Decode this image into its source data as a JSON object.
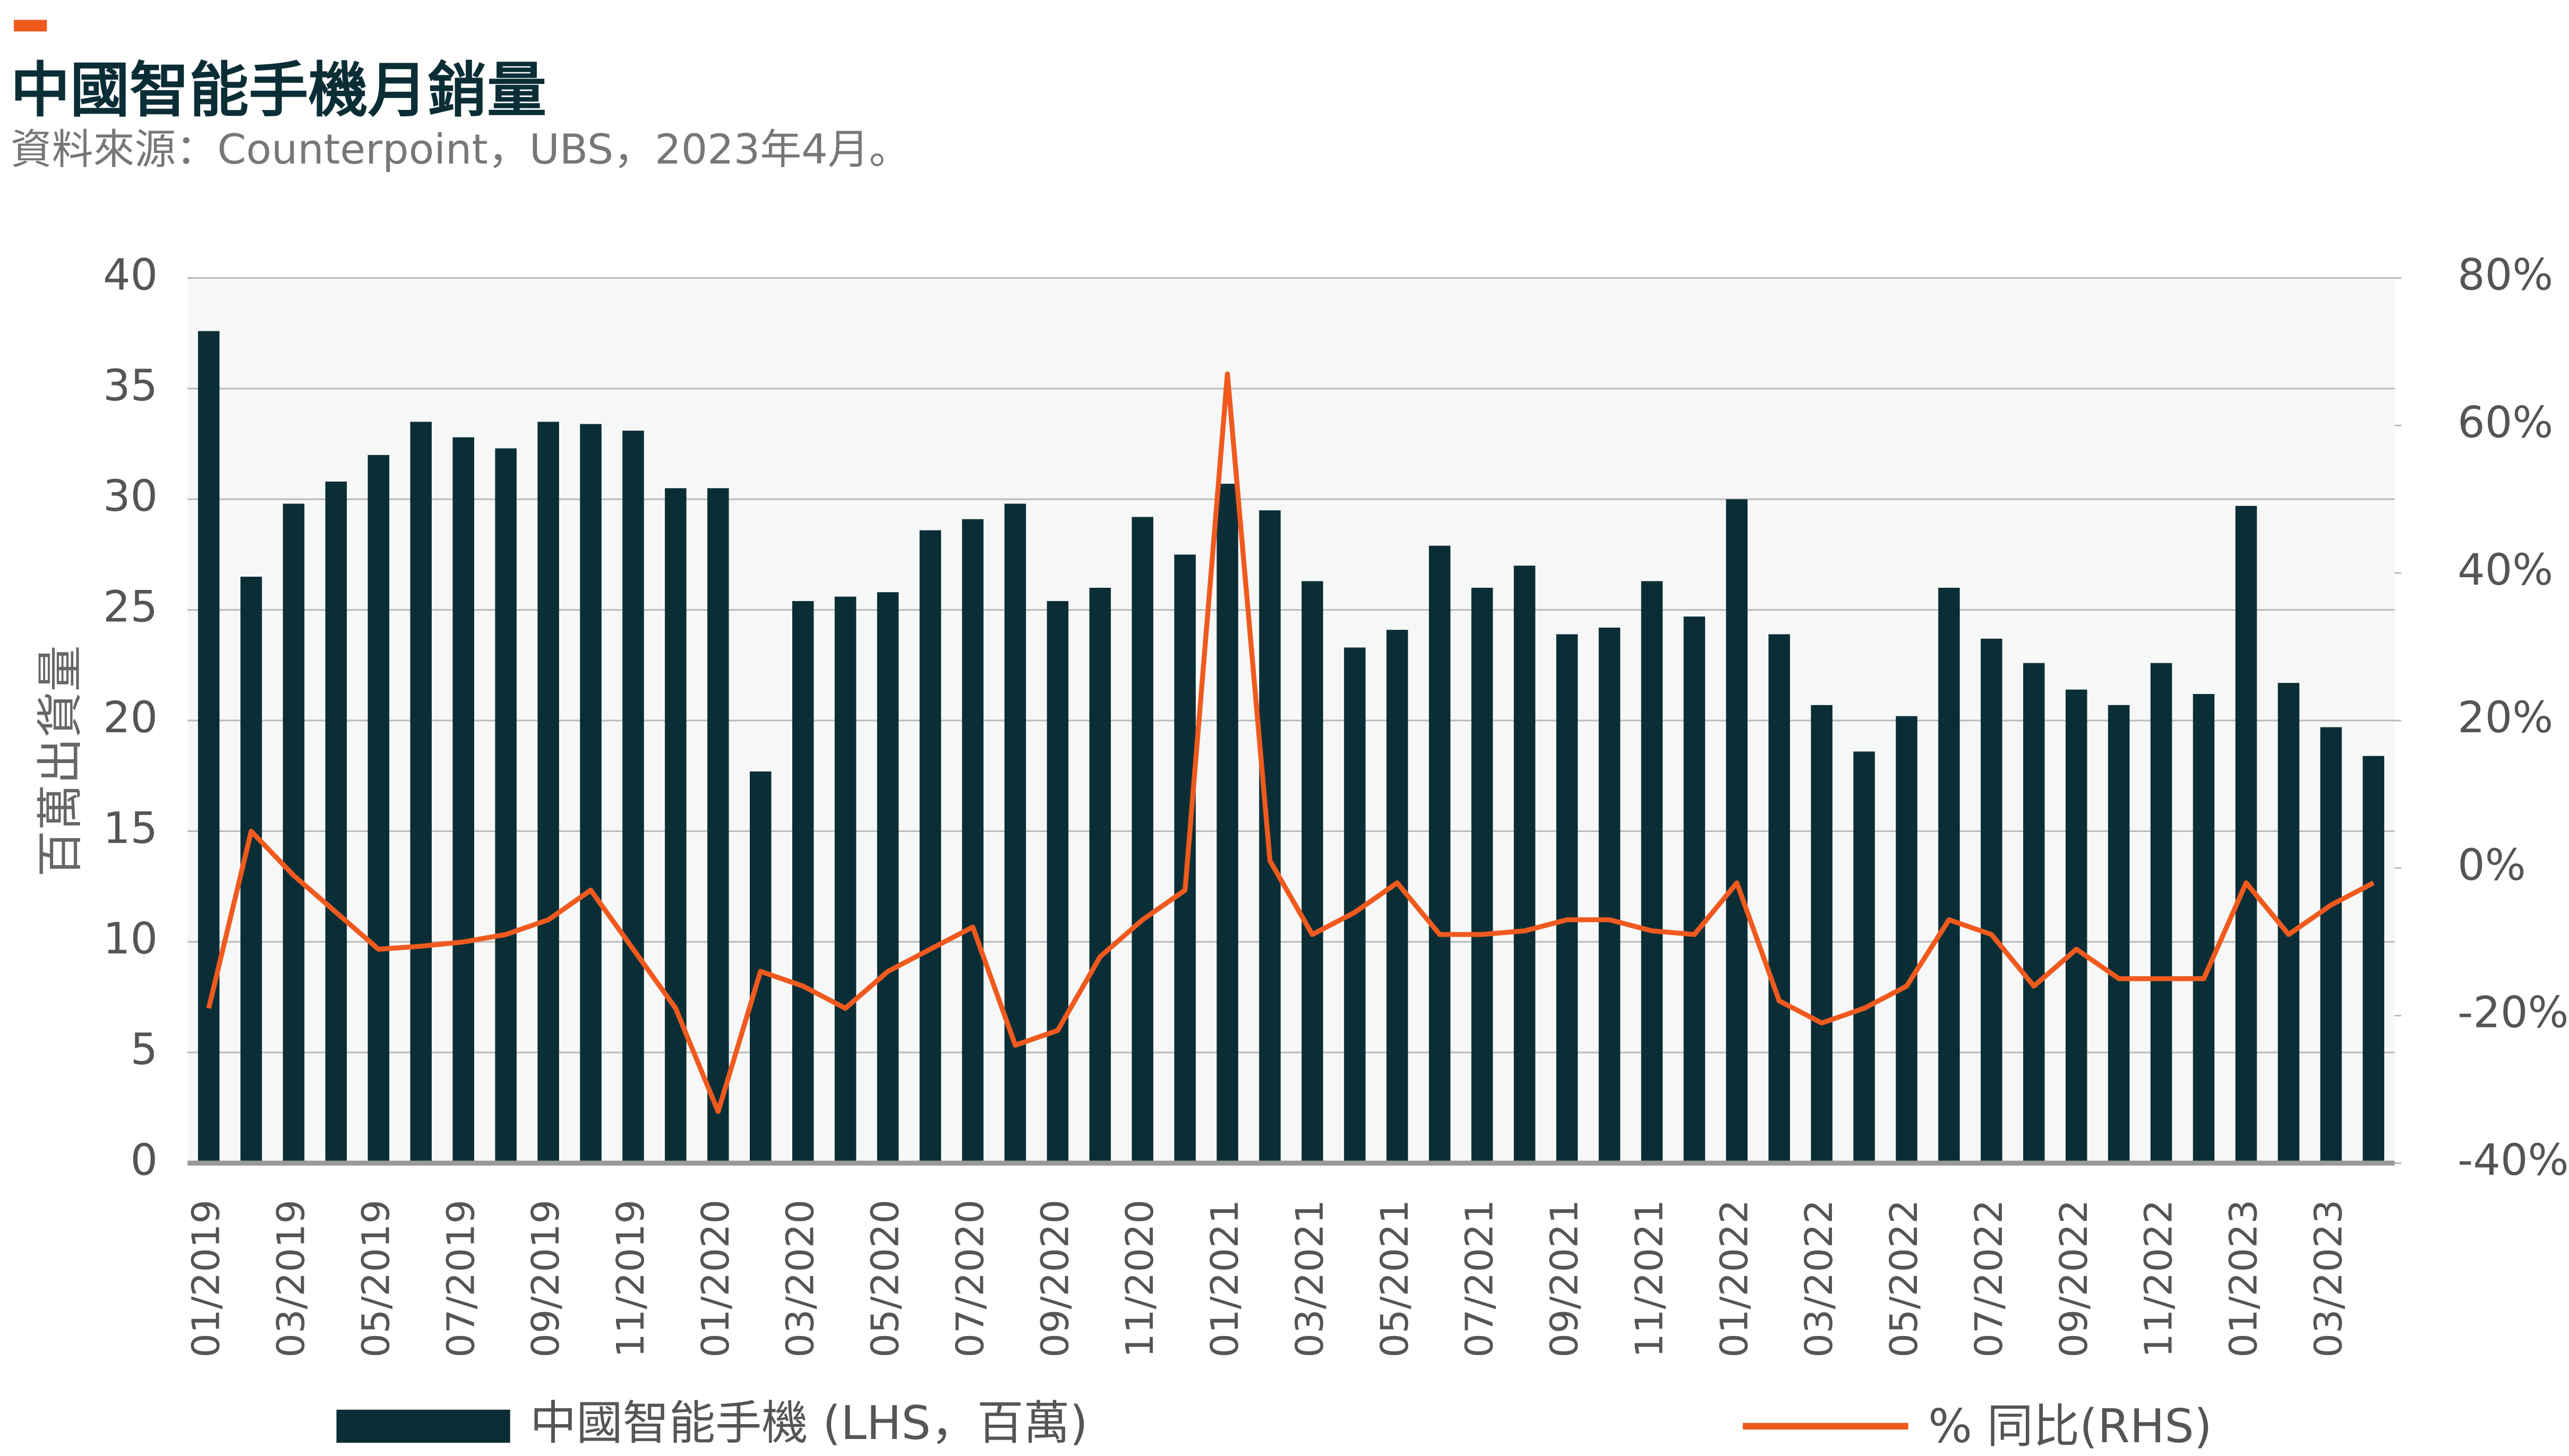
{
  "chart_data": {
    "type": "bar_line",
    "title": "中國智能手機月銷量",
    "subtitle": "資料來源：Counterpoint，UBS，2023年4月。",
    "ylabel": "百萬出貨量",
    "categories": [
      "01/2019",
      null,
      "03/2019",
      null,
      "05/2019",
      null,
      "07/2019",
      null,
      "09/2019",
      null,
      "11/2019",
      null,
      "01/2020",
      null,
      "03/2020",
      null,
      "05/2020",
      null,
      "07/2020",
      null,
      "09/2020",
      null,
      "11/2020",
      null,
      "01/2021",
      null,
      "03/2021",
      null,
      "05/2021",
      null,
      "07/2021",
      null,
      "09/2021",
      null,
      "11/2021",
      null,
      "01/2022",
      null,
      "03/2022",
      null,
      "05/2022",
      null,
      "07/2022",
      null,
      "09/2022",
      null,
      "11/2022",
      null,
      "01/2023",
      null,
      "03/2023",
      null
    ],
    "series": [
      {
        "name": "中國智能手機 (LHS，百萬)",
        "type": "bar",
        "color": "#0b2e36",
        "values": [
          37.6,
          26.5,
          29.8,
          30.8,
          32.0,
          33.5,
          32.8,
          32.3,
          33.5,
          33.4,
          33.1,
          30.5,
          30.5,
          17.7,
          25.4,
          25.6,
          25.8,
          28.6,
          29.1,
          29.8,
          25.4,
          26.0,
          29.2,
          27.5,
          30.7,
          29.5,
          26.3,
          23.3,
          24.1,
          27.9,
          26.0,
          27.0,
          23.9,
          24.2,
          26.3,
          24.7,
          30.0,
          23.9,
          20.7,
          18.6,
          20.2,
          26.0,
          23.7,
          22.6,
          21.4,
          20.7,
          22.6,
          21.2,
          29.7,
          21.7,
          19.7,
          18.4
        ]
      },
      {
        "name": "% 同比(RHS)",
        "type": "line",
        "axis": "y2",
        "color": "#f05a1e",
        "values": [
          -19,
          5,
          -1,
          -6,
          -11,
          -10.6,
          -10,
          -9,
          -7,
          -3,
          -11,
          -19,
          -33,
          -14,
          -16,
          -19,
          -14,
          -11,
          -8,
          -24,
          -22,
          -12,
          -7,
          -3,
          67,
          1,
          -9,
          -6,
          -2,
          -9,
          -9,
          -8.5,
          -7,
          -7,
          -8.5,
          -9,
          -2,
          -18,
          -21,
          -19,
          -16,
          -7,
          -9,
          -16,
          -11,
          -15,
          -15,
          -15,
          -2,
          -9,
          -5,
          -2
        ]
      }
    ],
    "ylim": [
      0,
      40
    ],
    "yticks": [
      0,
      5,
      10,
      15,
      20,
      25,
      30,
      35,
      40
    ],
    "y2lim": [
      -40,
      80
    ],
    "y2ticks": [
      {
        "value": -40,
        "label": "-40%"
      },
      {
        "value": -20,
        "label": "-20%"
      },
      {
        "value": 0,
        "label": "0%"
      },
      {
        "value": 20,
        "label": "20%"
      },
      {
        "value": 40,
        "label": "40%"
      },
      {
        "value": 60,
        "label": "60%"
      },
      {
        "value": 80,
        "label": "80%"
      }
    ],
    "grid": true,
    "legend": "bottom"
  }
}
